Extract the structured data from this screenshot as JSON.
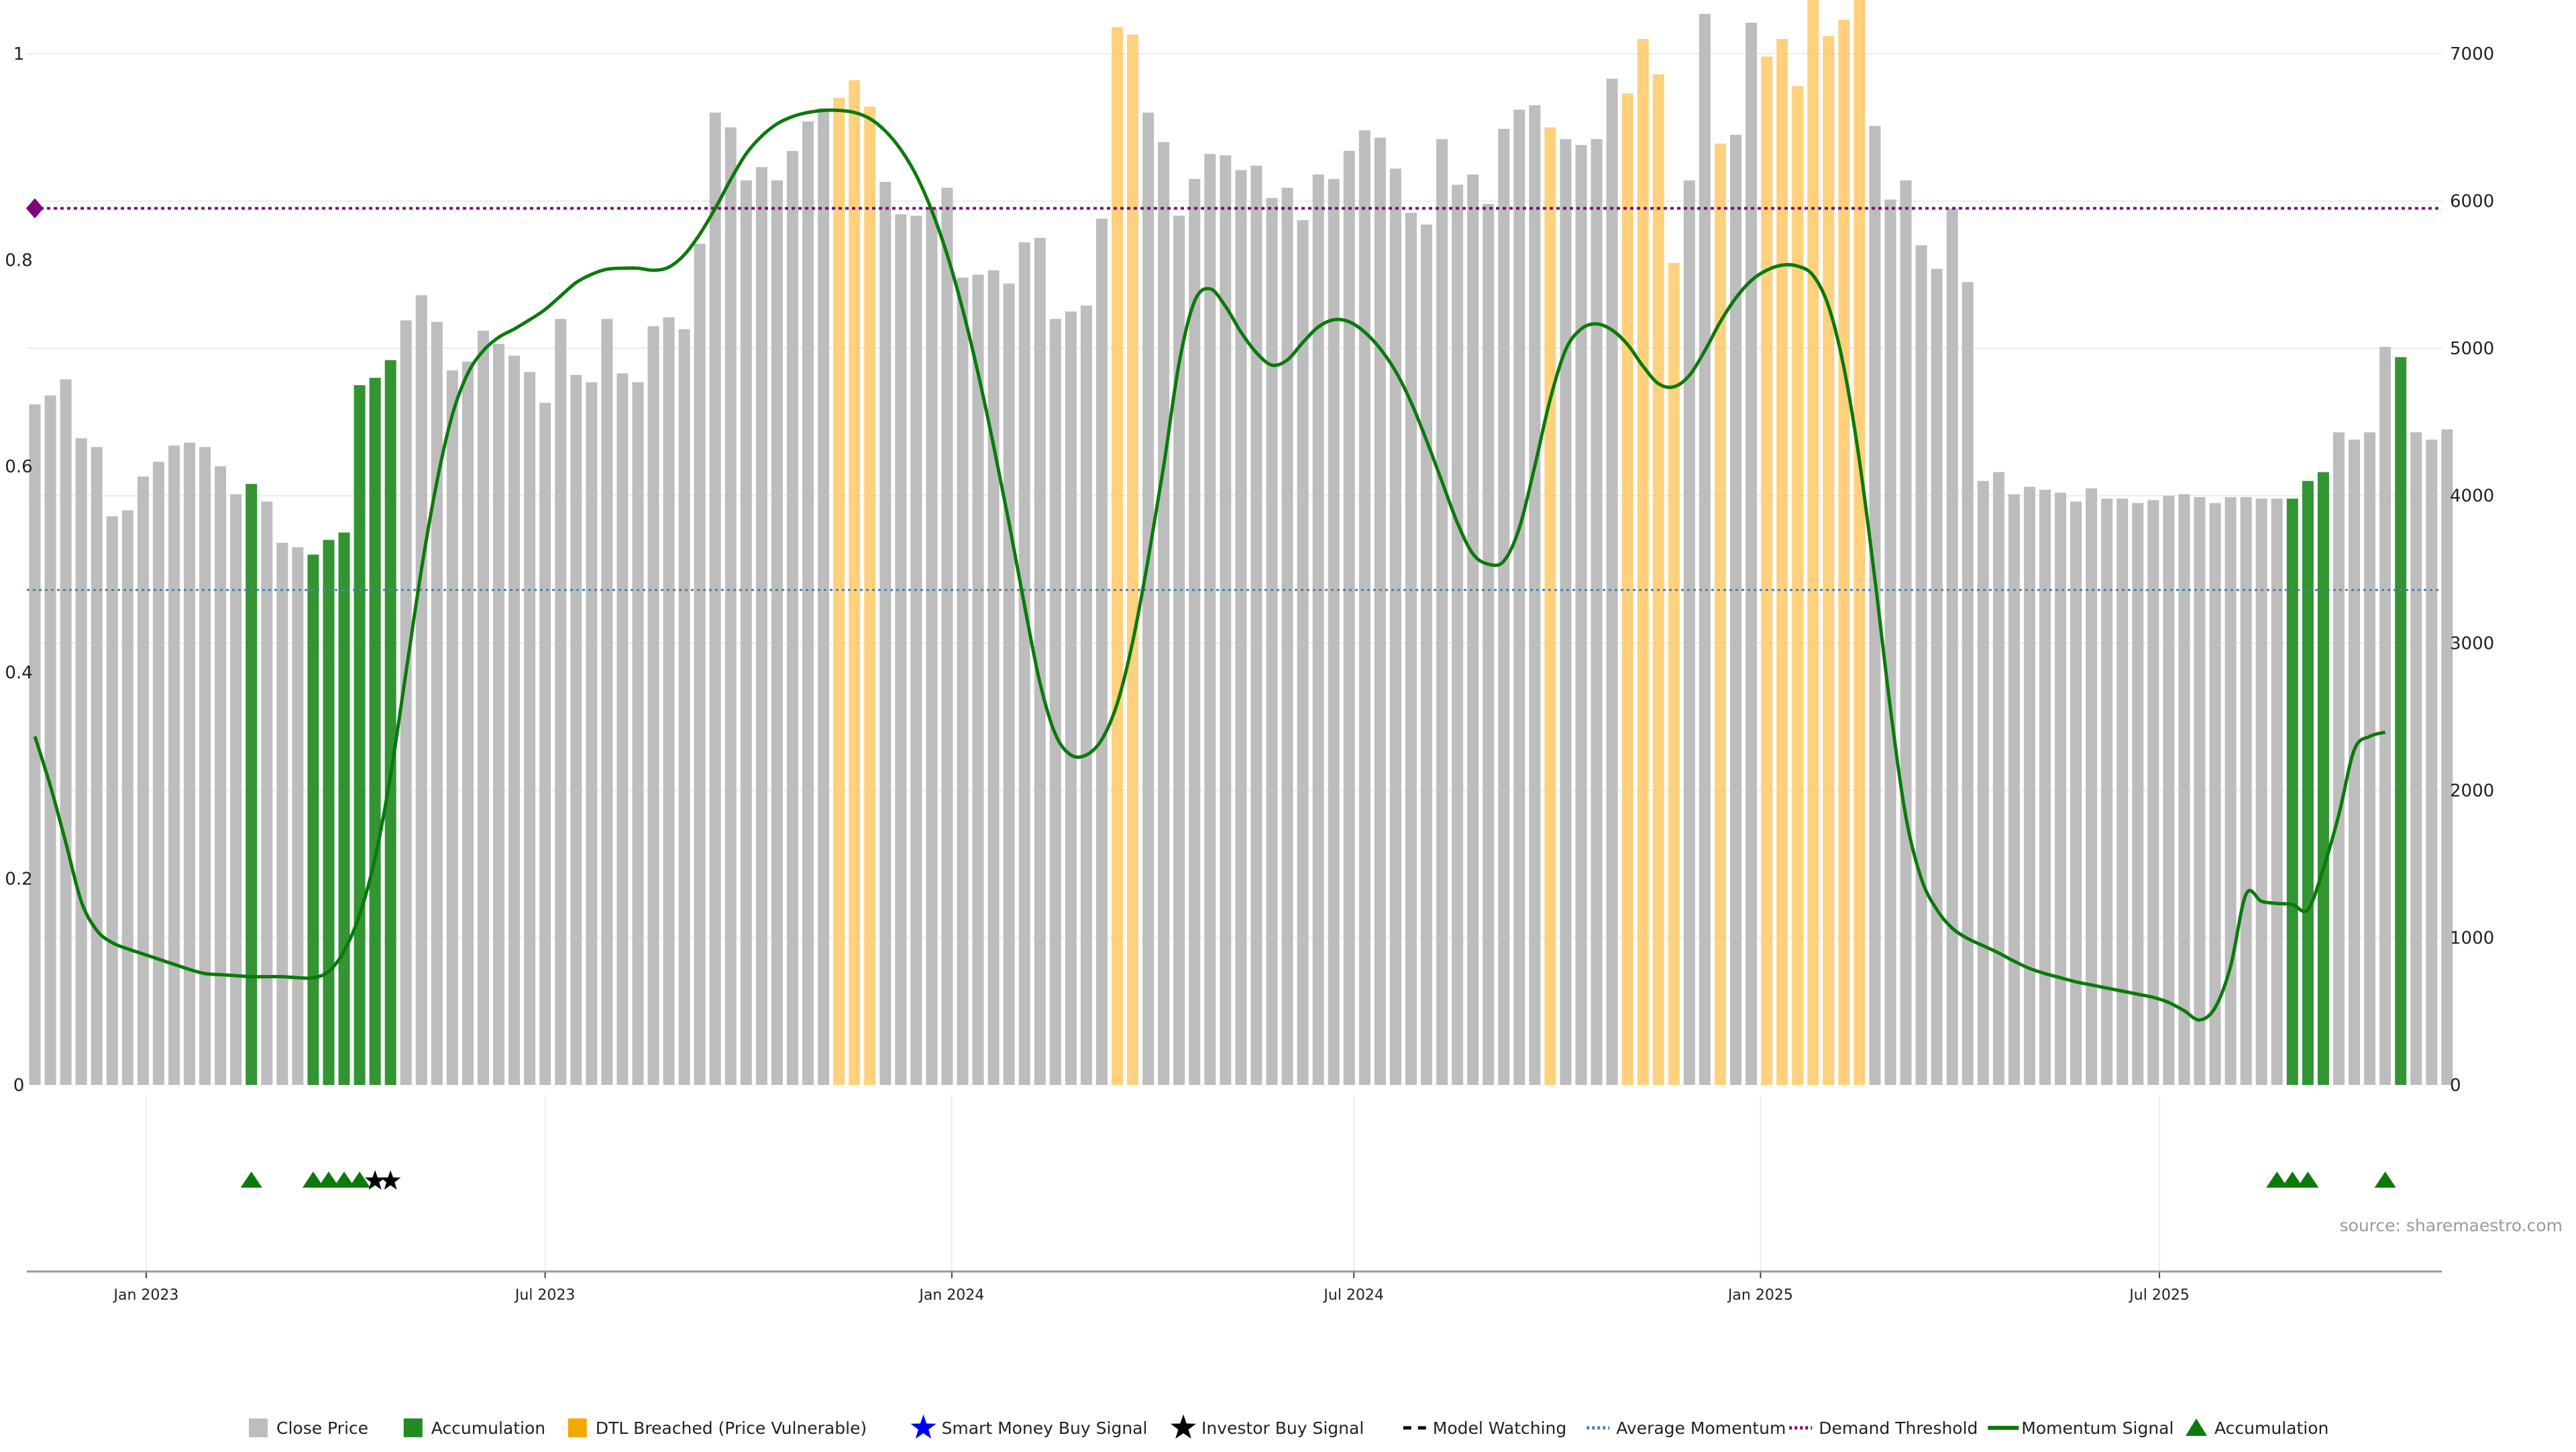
{
  "chart_data": {
    "type": "bar",
    "title": "",
    "xlabel": "",
    "ylabel": "",
    "left_axis": {
      "ylim": [
        0,
        1
      ],
      "ticks": [
        "0",
        "0.2",
        "0.4",
        "0.6",
        "0.8",
        "1"
      ]
    },
    "right_axis": {
      "ylim": [
        0,
        7000
      ],
      "ticks": [
        "0",
        "1000",
        "2000",
        "3000",
        "4000",
        "5000",
        "6000",
        "7000"
      ]
    },
    "x_ticks": [
      "Jan 2023",
      "Jul 2023",
      "Jan 2024",
      "Jul 2024",
      "Jan 2025",
      "Jul 2025"
    ],
    "x_tick_positions": [
      7.2,
      33,
      59.3,
      85.3,
      111.6,
      137.4
    ],
    "colors": {
      "close": "#bdbdbd",
      "accumulation": "#228b22",
      "dtl": "#ffc966",
      "momentum": "#0a7a0a",
      "average": "#4682b4",
      "demand": "#800080",
      "triangle": "#0b7a0b",
      "star_investor": "#000000",
      "star_smart": "#0000ff"
    },
    "close_values": [
      4620,
      4680,
      4790,
      4390,
      4330,
      3860,
      3900,
      4130,
      4230,
      4340,
      4360,
      4330,
      4200,
      4010,
      4080,
      3960,
      3680,
      3650,
      3600,
      3700,
      3750,
      4750,
      4800,
      4920,
      5190,
      5360,
      5180,
      4850,
      4910,
      5120,
      5030,
      4950,
      4840,
      4630,
      5200,
      4820,
      4770,
      5200,
      4830,
      4770,
      5150,
      5210,
      5130,
      5710,
      6600,
      6500,
      6140,
      6230,
      6140,
      6340,
      6540,
      6630,
      6700,
      6820,
      6640,
      6130,
      5910,
      5900,
      5950,
      6090,
      5480,
      5500,
      5530,
      5440,
      5720,
      5750,
      5200,
      5250,
      5290,
      5880,
      7180,
      7130,
      6600,
      6400,
      5900,
      6150,
      6320,
      6310,
      6210,
      6240,
      6020,
      6090,
      5870,
      6180,
      6150,
      6340,
      6480,
      6430,
      6220,
      5920,
      5840,
      6420,
      6110,
      6180,
      5980,
      6490,
      6620,
      6650,
      6500,
      6420,
      6380,
      6420,
      6830,
      6730,
      7100,
      6860,
      5580,
      6140,
      7270,
      6390,
      6450,
      7210,
      6980,
      7100,
      6780,
      7390,
      7120,
      7230,
      7390,
      6510,
      6010,
      6140,
      5700,
      5540,
      5950,
      5450,
      4100,
      4160,
      4010,
      4060,
      4040,
      4020,
      3960,
      4050,
      3980,
      3980,
      3950,
      3970,
      4000,
      4010,
      3990,
      3950,
      3990,
      3990,
      3980,
      3980,
      3980,
      4100,
      4160,
      4430,
      4380,
      4430,
      5010,
      4940,
      4430,
      4380,
      4450
    ],
    "category": [
      "c",
      "c",
      "c",
      "c",
      "c",
      "c",
      "c",
      "c",
      "c",
      "c",
      "c",
      "c",
      "c",
      "c",
      "a",
      "c",
      "c",
      "c",
      "a",
      "a",
      "a",
      "a",
      "a",
      "a",
      "c",
      "c",
      "c",
      "c",
      "c",
      "c",
      "c",
      "c",
      "c",
      "c",
      "c",
      "c",
      "c",
      "c",
      "c",
      "c",
      "c",
      "c",
      "c",
      "c",
      "c",
      "c",
      "c",
      "c",
      "c",
      "c",
      "c",
      "c",
      "d",
      "d",
      "d",
      "c",
      "c",
      "c",
      "c",
      "c",
      "c",
      "c",
      "c",
      "c",
      "c",
      "c",
      "c",
      "c",
      "c",
      "c",
      "d",
      "d",
      "c",
      "c",
      "c",
      "c",
      "c",
      "c",
      "c",
      "c",
      "c",
      "c",
      "c",
      "c",
      "c",
      "c",
      "c",
      "c",
      "c",
      "c",
      "c",
      "c",
      "c",
      "c",
      "c",
      "c",
      "c",
      "c",
      "d",
      "c",
      "c",
      "c",
      "c",
      "d",
      "d",
      "d",
      "d",
      "c",
      "c",
      "d",
      "c",
      "c",
      "d",
      "d",
      "d",
      "d",
      "d",
      "d",
      "d",
      "c",
      "c",
      "c",
      "c",
      "c",
      "c",
      "c",
      "c",
      "c",
      "c",
      "c",
      "c",
      "c",
      "c",
      "c",
      "c",
      "c",
      "c",
      "c",
      "c",
      "c",
      "c",
      "c",
      "c",
      "c",
      "c",
      "c",
      "a",
      "a",
      "a",
      "c",
      "c",
      "c",
      "c",
      "a",
      "c",
      "c",
      "c"
    ],
    "momentum_points": [
      [
        0,
        0.338
      ],
      [
        1,
        0.29
      ],
      [
        2,
        0.235
      ],
      [
        3,
        0.178
      ],
      [
        4,
        0.15
      ],
      [
        5,
        0.138
      ],
      [
        6,
        0.132
      ],
      [
        7,
        0.127
      ],
      [
        8,
        0.122
      ],
      [
        9,
        0.117
      ],
      [
        10,
        0.112
      ],
      [
        11,
        0.108
      ],
      [
        12,
        0.107
      ],
      [
        13,
        0.106
      ],
      [
        14,
        0.105
      ],
      [
        15,
        0.105
      ],
      [
        16,
        0.105
      ],
      [
        17,
        0.104
      ],
      [
        18,
        0.104
      ],
      [
        19,
        0.11
      ],
      [
        20,
        0.13
      ],
      [
        21,
        0.165
      ],
      [
        22,
        0.22
      ],
      [
        23,
        0.3
      ],
      [
        24,
        0.4
      ],
      [
        25,
        0.5
      ],
      [
        26,
        0.585
      ],
      [
        27,
        0.65
      ],
      [
        28,
        0.69
      ],
      [
        29,
        0.712
      ],
      [
        30,
        0.725
      ],
      [
        31,
        0.733
      ],
      [
        32,
        0.742
      ],
      [
        33,
        0.752
      ],
      [
        34,
        0.765
      ],
      [
        35,
        0.778
      ],
      [
        36,
        0.786
      ],
      [
        37,
        0.791
      ],
      [
        38,
        0.792
      ],
      [
        39,
        0.792
      ],
      [
        40,
        0.79
      ],
      [
        41,
        0.793
      ],
      [
        42,
        0.805
      ],
      [
        43,
        0.825
      ],
      [
        44,
        0.85
      ],
      [
        45,
        0.878
      ],
      [
        46,
        0.903
      ],
      [
        47,
        0.92
      ],
      [
        48,
        0.932
      ],
      [
        49,
        0.939
      ],
      [
        50,
        0.943
      ],
      [
        51,
        0.945
      ],
      [
        52,
        0.945
      ],
      [
        53,
        0.943
      ],
      [
        54,
        0.937
      ],
      [
        55,
        0.925
      ],
      [
        56,
        0.907
      ],
      [
        57,
        0.882
      ],
      [
        58,
        0.848
      ],
      [
        59,
        0.805
      ],
      [
        60,
        0.752
      ],
      [
        61,
        0.69
      ],
      [
        62,
        0.62
      ],
      [
        63,
        0.545
      ],
      [
        64,
        0.465
      ],
      [
        65,
        0.39
      ],
      [
        66,
        0.34
      ],
      [
        67,
        0.32
      ],
      [
        68,
        0.32
      ],
      [
        69,
        0.335
      ],
      [
        70,
        0.37
      ],
      [
        71,
        0.43
      ],
      [
        72,
        0.51
      ],
      [
        73,
        0.6
      ],
      [
        74,
        0.7
      ],
      [
        75,
        0.76
      ],
      [
        76,
        0.772
      ],
      [
        77,
        0.755
      ],
      [
        78,
        0.73
      ],
      [
        79,
        0.71
      ],
      [
        80,
        0.698
      ],
      [
        81,
        0.703
      ],
      [
        82,
        0.72
      ],
      [
        83,
        0.735
      ],
      [
        84,
        0.742
      ],
      [
        85,
        0.74
      ],
      [
        86,
        0.73
      ],
      [
        87,
        0.714
      ],
      [
        88,
        0.692
      ],
      [
        89,
        0.662
      ],
      [
        90,
        0.625
      ],
      [
        91,
        0.585
      ],
      [
        92,
        0.545
      ],
      [
        93,
        0.515
      ],
      [
        94,
        0.505
      ],
      [
        95,
        0.508
      ],
      [
        96,
        0.54
      ],
      [
        97,
        0.6
      ],
      [
        98,
        0.665
      ],
      [
        99,
        0.713
      ],
      [
        100,
        0.733
      ],
      [
        101,
        0.738
      ],
      [
        102,
        0.732
      ],
      [
        103,
        0.718
      ],
      [
        104,
        0.697
      ],
      [
        105,
        0.68
      ],
      [
        106,
        0.677
      ],
      [
        107,
        0.688
      ],
      [
        108,
        0.712
      ],
      [
        109,
        0.74
      ],
      [
        110,
        0.763
      ],
      [
        111,
        0.78
      ],
      [
        112,
        0.79
      ],
      [
        113,
        0.795
      ],
      [
        114,
        0.794
      ],
      [
        115,
        0.785
      ],
      [
        116,
        0.755
      ],
      [
        117,
        0.695
      ],
      [
        118,
        0.605
      ],
      [
        119,
        0.49
      ],
      [
        120,
        0.365
      ],
      [
        121,
        0.26
      ],
      [
        122,
        0.2
      ],
      [
        123,
        0.17
      ],
      [
        124,
        0.152
      ],
      [
        125,
        0.142
      ],
      [
        126,
        0.135
      ],
      [
        127,
        0.128
      ],
      [
        128,
        0.12
      ],
      [
        129,
        0.113
      ],
      [
        130,
        0.108
      ],
      [
        131,
        0.104
      ],
      [
        132,
        0.1
      ],
      [
        133,
        0.097
      ],
      [
        134,
        0.094
      ],
      [
        135,
        0.091
      ],
      [
        136,
        0.088
      ],
      [
        137,
        0.085
      ],
      [
        138,
        0.08
      ],
      [
        139,
        0.072
      ],
      [
        140,
        0.063
      ],
      [
        141,
        0.075
      ],
      [
        142,
        0.115
      ],
      [
        143,
        0.185
      ],
      [
        144,
        0.178
      ],
      [
        145,
        0.176
      ],
      [
        146,
        0.175
      ],
      [
        147,
        0.17
      ],
      [
        148,
        0.21
      ],
      [
        149,
        0.262
      ],
      [
        150,
        0.325
      ],
      [
        151,
        0.338
      ],
      [
        152,
        0.342
      ]
    ],
    "average_momentum": 0.48,
    "demand_threshold": 0.85,
    "markers": [
      {
        "type": "triangle",
        "index": 14
      },
      {
        "type": "triangle",
        "index": 18
      },
      {
        "type": "triangle",
        "index": 19
      },
      {
        "type": "triangle",
        "index": 20
      },
      {
        "type": "triangle",
        "index": 21
      },
      {
        "type": "star",
        "index": 22
      },
      {
        "type": "star",
        "index": 23
      },
      {
        "type": "triangle",
        "index": 145
      },
      {
        "type": "triangle",
        "index": 146
      },
      {
        "type": "triangle",
        "index": 147
      },
      {
        "type": "triangle",
        "index": 152
      }
    ],
    "legend": [
      {
        "label": "Close Price",
        "symbol": "square",
        "color": "#bdbdbd"
      },
      {
        "label": "Accumulation",
        "symbol": "square",
        "color": "#228b22"
      },
      {
        "label": "DTL Breached (Price Vulnerable)",
        "symbol": "square",
        "color": "#f5a800"
      },
      {
        "label": "Smart Money Buy Signal",
        "symbol": "star",
        "color": "#0000ff"
      },
      {
        "label": "Investor Buy Signal",
        "symbol": "star",
        "color": "#000000"
      },
      {
        "label": "Model Watching",
        "symbol": "dash",
        "color": "#000000"
      },
      {
        "label": "Average Momentum",
        "symbol": "dotted",
        "color": "#4682b4"
      },
      {
        "label": "Demand Threshold",
        "symbol": "dotted",
        "color": "#800080"
      },
      {
        "label": "Momentum Signal",
        "symbol": "solid",
        "color": "#0a7a0a"
      },
      {
        "label": "Accumulation",
        "symbol": "triangle",
        "color": "#0b7a0b"
      }
    ],
    "legend_placement": "bottom-center"
  },
  "source_text": "source: sharemaestro.com"
}
